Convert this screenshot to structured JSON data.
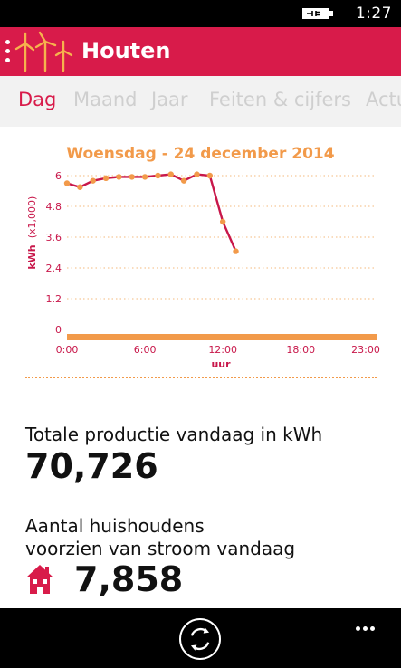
{
  "status_bar": {
    "time": "1:27",
    "battery_icon": "battery-charging-icon"
  },
  "header": {
    "title": "Houten",
    "logo_icon": "windmills-icon"
  },
  "tabs": [
    {
      "label": "Dag",
      "active": true
    },
    {
      "label": "Maand",
      "active": false
    },
    {
      "label": "Jaar",
      "active": false
    },
    {
      "label": "Feiten & cijfers",
      "active": false
    },
    {
      "label": "Actu",
      "active": false
    }
  ],
  "chart_data": {
    "type": "line",
    "title": "Woensdag - 24 december 2014",
    "xlabel": "uur",
    "ylabel": "kWh",
    "ylabel_unit": "(x1,000)",
    "x_tick_labels": [
      "0:00",
      "6:00",
      "12:00",
      "18:00",
      "23:00"
    ],
    "x_ticks": [
      0,
      6,
      12,
      18,
      23
    ],
    "y_tick_labels": [
      "6",
      "4.8",
      "3.6",
      "2.4",
      "1.2",
      "0"
    ],
    "y_ticks": [
      6,
      4.8,
      3.6,
      2.4,
      1.2,
      0
    ],
    "xlim": [
      0,
      23
    ],
    "ylim": [
      0,
      6
    ],
    "grid": true,
    "series": [
      {
        "x": [
          0,
          1,
          2,
          3,
          4,
          5,
          6,
          7,
          8,
          9,
          10,
          11,
          12,
          13
        ],
        "y": [
          5.7,
          5.55,
          5.8,
          5.9,
          5.95,
          5.95,
          5.95,
          6.0,
          6.05,
          5.8,
          6.05,
          6.0,
          4.2,
          3.05
        ]
      }
    ],
    "colors": {
      "line": "#c8174a",
      "points": "#f29a4a",
      "axis": "#f29a4a",
      "ticks": "#c8174a",
      "title": "#f29a4a"
    }
  },
  "production": {
    "label": "Totale productie vandaag in kWh",
    "value": "70,726"
  },
  "households": {
    "label_line1": "Aantal huishoudens",
    "label_line2": "voorzien van stroom vandaag",
    "value": "7,858",
    "icon": "house-icon"
  },
  "app_bar": {
    "sync_icon": "sync-icon",
    "more_icon": "more-icon"
  },
  "colors": {
    "accent": "#d81b4a",
    "orange": "#f29a4a",
    "tab_inactive": "#cfcfcf",
    "tab_bg": "#f2f2f2"
  }
}
